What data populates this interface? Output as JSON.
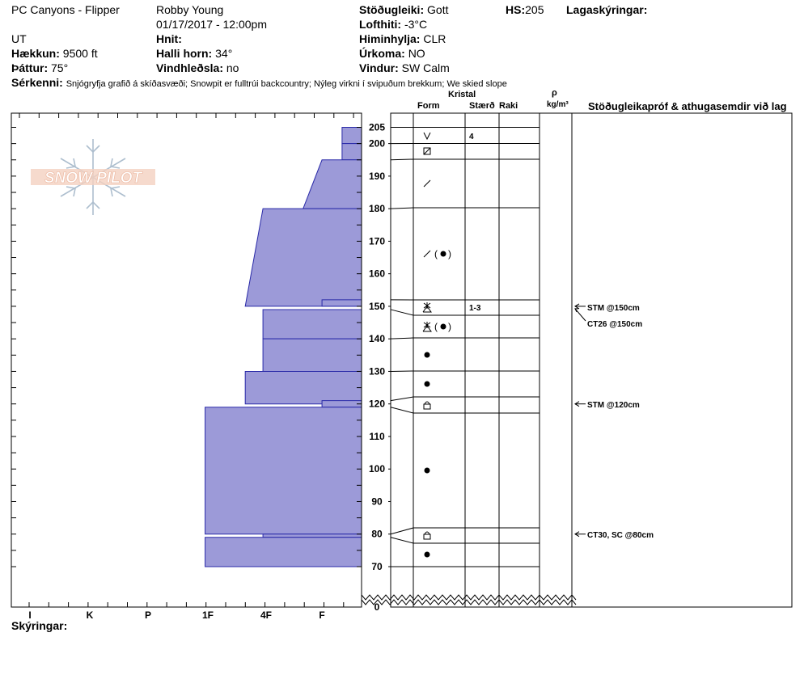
{
  "header": {
    "location": "PC Canyons - Flipper",
    "state": "UT",
    "observer": "Robby Young",
    "datetime": "01/17/2017 - 12:00pm",
    "elevation_label": "Hækkun:",
    "elevation_value": "9500 ft",
    "aspect_label": "Þáttur:",
    "aspect_value": "75°",
    "coords_label": "Hnit:",
    "coords_value": "",
    "slope_label": "Halli horn:",
    "slope_value": "34°",
    "wind_loading_label": "Vindhleðsla:",
    "wind_loading_value": "no",
    "stability_label": "Stöðugleiki:",
    "stability_value": "Gott",
    "air_temp_label": "Lofthiti:",
    "air_temp_value": "-3°C",
    "sky_label": "Himinhylja:",
    "sky_value": "CLR",
    "precip_label": "Úrkoma:",
    "precip_value": "NO",
    "wind_label": "Vindur:",
    "wind_value": "SW Calm",
    "hs_label": "HS:",
    "hs_value": "205",
    "layer_notes_label": "Lagaskýringar:",
    "specifics_label": "Sérkenni:",
    "specifics_value": "Snjógryfja grafið á skíðasvæði; Snowpit er fulltrúi backcountry; Nýleg virkni í svipuðum brekkum; We skied slope"
  },
  "logo_text": "SNOW PILOT",
  "columns": {
    "crystal": "Kristal",
    "form": "Form",
    "size": "Stærð",
    "moisture": "Raki",
    "rho": "ρ",
    "density_unit": "kg/m³",
    "stability_notes": "Stöðugleikapróf & athugasemdir við lag"
  },
  "footer_label": "Skýringar:",
  "chart_data": {
    "type": "snow_profile",
    "y_ticks": [
      "205",
      "200",
      "190",
      "180",
      "170",
      "160",
      "150",
      "140",
      "130",
      "120",
      "110",
      "100",
      "90",
      "80",
      "70",
      "0"
    ],
    "hardness_ticks": [
      "I",
      "K",
      "P",
      "1F",
      "4F",
      "F"
    ],
    "hardness_scale_note": "hardness shown as bar extent from right edge; F=1, 4F=2, 1F=3",
    "layers": [
      {
        "top": 205,
        "bottom": 200,
        "hardness_top": 0.33,
        "hardness_bottom": 0.33,
        "form": "v",
        "size": "4"
      },
      {
        "top": 200,
        "bottom": 195,
        "hardness_top": 0.33,
        "hardness_bottom": 0.33,
        "form": "box",
        "size": ""
      },
      {
        "top": 195,
        "bottom": 180,
        "hardness_top": 0.67,
        "hardness_bottom": 0.99,
        "form": "slash",
        "size": ""
      },
      {
        "top": 180,
        "bottom": 150,
        "hardness_top": 1.67,
        "hardness_bottom": 1.97,
        "form": "slash-dot",
        "size": ""
      },
      {
        "top": 152,
        "bottom": 150,
        "hardness_top": 0.67,
        "hardness_bottom": 0.67,
        "form": "star",
        "size": "1-3"
      },
      {
        "top": 149,
        "bottom": 140,
        "hardness_top": 1.67,
        "hardness_bottom": 1.67,
        "form": "star-dot",
        "size": ""
      },
      {
        "top": 140,
        "bottom": 130,
        "hardness_top": 1.67,
        "hardness_bottom": 1.67,
        "form": "dot",
        "size": ""
      },
      {
        "top": 130,
        "bottom": 120,
        "hardness_top": 1.97,
        "hardness_bottom": 1.97,
        "form": "dot",
        "size": ""
      },
      {
        "top": 121,
        "bottom": 119,
        "hardness_top": 0.67,
        "hardness_bottom": 0.67,
        "form": "lock",
        "size": ""
      },
      {
        "top": 119,
        "bottom": 80,
        "hardness_top": 2.65,
        "hardness_bottom": 2.65,
        "form": "dot",
        "size": ""
      },
      {
        "top": 80,
        "bottom": 79,
        "hardness_top": 1.67,
        "hardness_bottom": 1.67,
        "form": "lock",
        "size": ""
      },
      {
        "top": 79,
        "bottom": 70,
        "hardness_top": 2.65,
        "hardness_bottom": 2.65,
        "form": "dot",
        "size": ""
      }
    ],
    "tests": [
      {
        "depth": 150,
        "label": "STM @150cm"
      },
      {
        "depth": 150,
        "label": "CT26 @150cm"
      },
      {
        "depth": 120,
        "label": "STM @120cm"
      },
      {
        "depth": 80,
        "label": "CT30, SC @80cm"
      }
    ]
  }
}
